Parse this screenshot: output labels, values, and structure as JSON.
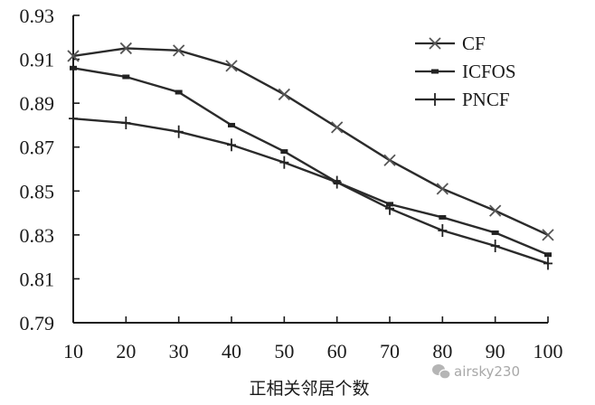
{
  "chart_data": {
    "type": "line",
    "title": "",
    "xlabel": "正相关邻居个数",
    "ylabel": "",
    "x": [
      10,
      20,
      30,
      40,
      50,
      60,
      70,
      80,
      90,
      100
    ],
    "xticks": [
      "10",
      "20",
      "30",
      "40",
      "50",
      "60",
      "70",
      "80",
      "90",
      "100"
    ],
    "yticks": [
      "0.93",
      "0.91",
      "0.89",
      "0.87",
      "0.85",
      "0.83",
      "0.81",
      "0.79"
    ],
    "ylim": [
      0.79,
      0.93
    ],
    "xlim": [
      10,
      100
    ],
    "grid": false,
    "legend_position": "upper right",
    "series": [
      {
        "name": "CF",
        "marker": "x",
        "values": [
          0.9115,
          0.915,
          0.914,
          0.907,
          0.894,
          0.879,
          0.864,
          0.851,
          0.841,
          0.83
        ]
      },
      {
        "name": "ICFOS",
        "marker": "square",
        "values": [
          0.906,
          0.902,
          0.895,
          0.88,
          0.868,
          0.854,
          0.844,
          0.838,
          0.831,
          0.821
        ]
      },
      {
        "name": "PNCF",
        "marker": "+",
        "values": [
          0.883,
          0.881,
          0.877,
          0.871,
          0.863,
          0.854,
          0.842,
          0.832,
          0.825,
          0.817
        ]
      }
    ]
  },
  "watermark": "airsky230",
  "colors": {
    "line": "#2b2b2b",
    "axis": "#1a1a1a",
    "watermark": "#a8a8a8"
  }
}
